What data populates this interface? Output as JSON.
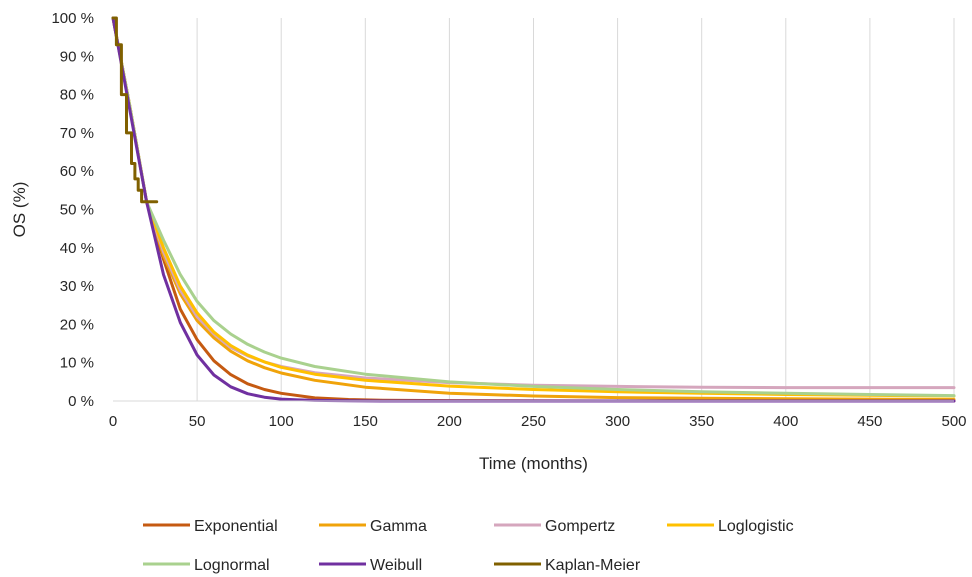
{
  "chart_data": {
    "type": "line",
    "title": "",
    "xlabel": "Time (months)",
    "ylabel": "OS (%)",
    "xlim": [
      0,
      500
    ],
    "ylim": [
      0,
      100
    ],
    "x_ticks": [
      0,
      50,
      100,
      150,
      200,
      250,
      300,
      350,
      400,
      450,
      500
    ],
    "x_tick_labels": [
      "0",
      "50",
      "100",
      "150",
      "200",
      "250",
      "300",
      "350",
      "400",
      "450",
      "500"
    ],
    "y_ticks": [
      0,
      10,
      20,
      30,
      40,
      50,
      60,
      70,
      80,
      90,
      100
    ],
    "y_tick_labels": [
      "0 %",
      "10 %",
      "20 %",
      "30 %",
      "40 %",
      "50 %",
      "60 %",
      "70 %",
      "80 %",
      "90 %",
      "100 %"
    ],
    "grid": "vertical",
    "legend_position": "bottom",
    "series": [
      {
        "name": "Exponential",
        "color": "#c55a11",
        "x": [
          0,
          10,
          20,
          30,
          40,
          50,
          60,
          70,
          80,
          90,
          100,
          120,
          140,
          160,
          200,
          300,
          400,
          500
        ],
        "y": [
          100,
          77,
          52,
          37,
          24,
          16,
          10.5,
          6.9,
          4.5,
          3.0,
          2.0,
          0.8,
          0.4,
          0.2,
          0.1,
          0,
          0,
          0
        ]
      },
      {
        "name": "Gamma",
        "color": "#f0a30a",
        "x": [
          0,
          10,
          20,
          30,
          40,
          50,
          60,
          70,
          80,
          90,
          100,
          120,
          150,
          200,
          250,
          300,
          350,
          400,
          450,
          500
        ],
        "y": [
          100,
          77,
          52,
          38,
          28,
          21,
          16.5,
          13,
          10.5,
          8.7,
          7.3,
          5.4,
          3.6,
          2.0,
          1.3,
          0.9,
          0.7,
          0.6,
          0.5,
          0.4
        ]
      },
      {
        "name": "Gompertz",
        "color": "#d5a6bd",
        "x": [
          0,
          10,
          20,
          30,
          40,
          50,
          60,
          70,
          80,
          90,
          100,
          120,
          150,
          200,
          250,
          300,
          350,
          400,
          450,
          500
        ],
        "y": [
          100,
          77,
          52,
          39,
          29,
          22,
          17.5,
          14,
          11.8,
          10.2,
          9.0,
          7.4,
          6.0,
          4.8,
          4.1,
          3.8,
          3.6,
          3.5,
          3.5,
          3.5
        ]
      },
      {
        "name": "Loglogistic",
        "color": "#ffc000",
        "x": [
          0,
          10,
          20,
          30,
          40,
          50,
          60,
          70,
          80,
          90,
          100,
          120,
          150,
          200,
          250,
          300,
          350,
          400,
          450,
          500
        ],
        "y": [
          100,
          77,
          52,
          40,
          30,
          23,
          18,
          14.5,
          12,
          10.2,
          8.8,
          7.0,
          5.4,
          3.9,
          3.0,
          2.4,
          2.0,
          1.7,
          1.5,
          1.3
        ]
      },
      {
        "name": "Lognormal",
        "color": "#a9d18e",
        "x": [
          0,
          10,
          20,
          30,
          40,
          50,
          60,
          70,
          80,
          90,
          100,
          120,
          150,
          200,
          250,
          300,
          350,
          400,
          450,
          500
        ],
        "y": [
          100,
          77,
          52,
          42,
          33,
          26,
          21,
          17.5,
          14.8,
          12.8,
          11.2,
          9.0,
          7.0,
          5.0,
          3.8,
          3.0,
          2.4,
          2.0,
          1.7,
          1.4
        ]
      },
      {
        "name": "Weibull",
        "color": "#7030a0",
        "x": [
          0,
          5,
          10,
          20,
          30,
          40,
          50,
          60,
          70,
          80,
          90,
          100,
          110,
          120,
          140,
          160,
          200,
          300,
          400,
          500
        ],
        "y": [
          100,
          88,
          76,
          52,
          33,
          20.5,
          12,
          6.8,
          3.7,
          1.9,
          1.0,
          0.5,
          0.3,
          0.15,
          0.05,
          0,
          0,
          0,
          0,
          0
        ]
      },
      {
        "name": "Kaplan-Meier",
        "color": "#806000",
        "x": [
          0,
          2,
          2,
          5,
          5,
          8,
          8,
          11,
          11,
          13,
          13,
          15,
          15,
          17,
          17,
          26
        ],
        "y": [
          100,
          100,
          93,
          93,
          80,
          80,
          70,
          70,
          62,
          62,
          58,
          58,
          55,
          55,
          52,
          52
        ]
      }
    ]
  }
}
